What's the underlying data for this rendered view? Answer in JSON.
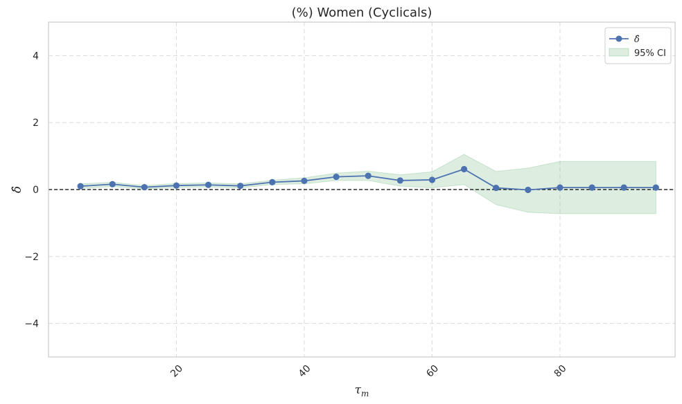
{
  "chart_data": {
    "type": "line",
    "title": "(%) Women (Cyclicals)",
    "xlabel_main": "τ",
    "xlabel_sub": "m",
    "ylabel": "δ̂",
    "xlim": [
      0,
      98
    ],
    "ylim": [
      -5,
      5
    ],
    "xticks": [
      20,
      40,
      60,
      80
    ],
    "xtick_labels": [
      "20",
      "40",
      "60",
      "80"
    ],
    "yticks": [
      -4,
      -2,
      0,
      2,
      4
    ],
    "ytick_labels": [
      "−4",
      "−2",
      "0",
      "2",
      "4"
    ],
    "grid": true,
    "reference_line_y": 0,
    "legend_position": "top-right",
    "series": [
      {
        "name": "δ̂",
        "legend_label": "δ̂",
        "color": "#4c72b0",
        "x": [
          5,
          10,
          15,
          20,
          25,
          30,
          35,
          40,
          45,
          50,
          55,
          60,
          65,
          70,
          75,
          80,
          85,
          90,
          95
        ],
        "y": [
          0.1,
          0.16,
          0.07,
          0.12,
          0.14,
          0.11,
          0.22,
          0.26,
          0.38,
          0.41,
          0.27,
          0.29,
          0.61,
          0.05,
          -0.01,
          0.06,
          0.06,
          0.06,
          0.06
        ]
      }
    ],
    "confidence_band": {
      "name": "95% CI",
      "legend_label": "95% CI",
      "color": "#55a868",
      "x": [
        5,
        10,
        15,
        20,
        25,
        30,
        35,
        40,
        45,
        50,
        55,
        60,
        65,
        70,
        75,
        80,
        85,
        90,
        95
      ],
      "lower": [
        0.03,
        0.09,
        0.02,
        0.06,
        0.08,
        0.05,
        0.15,
        0.17,
        0.27,
        0.27,
        0.1,
        0.05,
        0.15,
        -0.45,
        -0.68,
        -0.72,
        -0.72,
        -0.72,
        -0.72
      ],
      "upper": [
        0.17,
        0.22,
        0.12,
        0.18,
        0.2,
        0.17,
        0.28,
        0.35,
        0.49,
        0.55,
        0.44,
        0.53,
        1.05,
        0.54,
        0.64,
        0.84,
        0.84,
        0.84,
        0.84
      ]
    }
  }
}
